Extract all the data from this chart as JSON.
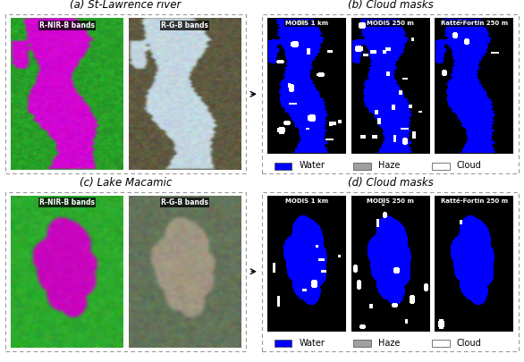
{
  "title_a": "(a) St-Lawrence river",
  "title_b": "(b) Cloud masks",
  "title_c": "(c) Lake Macamic",
  "title_d": "(d) Cloud masks",
  "label_rnirb": "R-NIR-B bands",
  "label_rgb": "R-G-B bands",
  "label_modis1km": "MODIS 1 km",
  "label_modis250m": "MODIS 250 m",
  "label_ratte": "Ratté-Fortin 250 m",
  "legend_water": "Water",
  "legend_haze": "Haze",
  "legend_cloud": "Cloud",
  "color_water": "#0000FF",
  "color_haze": "#A0A0A0",
  "color_cloud": "#FFFFFF",
  "color_black": "#000000",
  "bg_color": "#FFFFFF",
  "title_fontsize": 8.5,
  "label_fontsize": 6.5,
  "legend_fontsize": 7.0
}
